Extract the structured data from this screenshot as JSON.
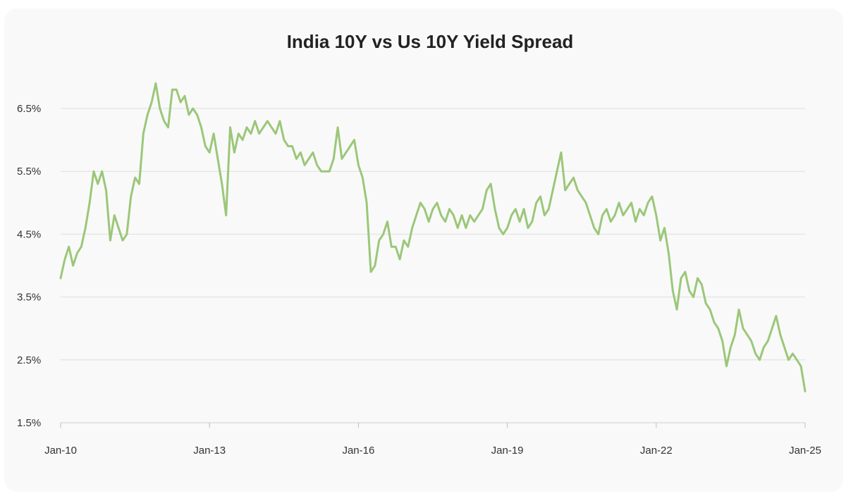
{
  "chart_data": {
    "type": "line",
    "title": "India 10Y vs Us 10Y Yield Spread",
    "xlabel": "",
    "ylabel": "",
    "x_ticks": [
      "Jan-10",
      "Jan-13",
      "Jan-16",
      "Jan-19",
      "Jan-22",
      "Jan-25"
    ],
    "x_range": [
      "2010-01",
      "2025-01"
    ],
    "y_ticks": [
      "6.5%",
      "5.5%",
      "4.5%",
      "3.5%",
      "2.5%",
      "1.5%"
    ],
    "ylim": [
      1.5,
      7.0
    ],
    "grid": "horizontal",
    "legend": "none",
    "line_color": "#9bc779",
    "series": [
      {
        "x": [
          "2010-01",
          "2010-02",
          "2010-03",
          "2010-04",
          "2010-05",
          "2010-06",
          "2010-07",
          "2010-08",
          "2010-09",
          "2010-10",
          "2010-11",
          "2010-12",
          "2011-01",
          "2011-02",
          "2011-03",
          "2011-04",
          "2011-05",
          "2011-06",
          "2011-07",
          "2011-08",
          "2011-09",
          "2011-10",
          "2011-11",
          "2011-12",
          "2012-01",
          "2012-02",
          "2012-03",
          "2012-04",
          "2012-05",
          "2012-06",
          "2012-07",
          "2012-08",
          "2012-09",
          "2012-10",
          "2012-11",
          "2012-12",
          "2013-01",
          "2013-02",
          "2013-03",
          "2013-04",
          "2013-05",
          "2013-06",
          "2013-07",
          "2013-08",
          "2013-09",
          "2013-10",
          "2013-11",
          "2013-12",
          "2014-01",
          "2014-02",
          "2014-03",
          "2014-04",
          "2014-05",
          "2014-06",
          "2014-07",
          "2014-08",
          "2014-09",
          "2014-10",
          "2014-11",
          "2014-12",
          "2015-01",
          "2015-02",
          "2015-03",
          "2015-04",
          "2015-05",
          "2015-06",
          "2015-07",
          "2015-08",
          "2015-09",
          "2015-10",
          "2015-11",
          "2015-12",
          "2016-01",
          "2016-02",
          "2016-03",
          "2016-04",
          "2016-05",
          "2016-06",
          "2016-07",
          "2016-08",
          "2016-09",
          "2016-10",
          "2016-11",
          "2016-12",
          "2017-01",
          "2017-02",
          "2017-03",
          "2017-04",
          "2017-05",
          "2017-06",
          "2017-07",
          "2017-08",
          "2017-09",
          "2017-10",
          "2017-11",
          "2017-12",
          "2018-01",
          "2018-02",
          "2018-03",
          "2018-04",
          "2018-05",
          "2018-06",
          "2018-07",
          "2018-08",
          "2018-09",
          "2018-10",
          "2018-11",
          "2018-12",
          "2019-01",
          "2019-02",
          "2019-03",
          "2019-04",
          "2019-05",
          "2019-06",
          "2019-07",
          "2019-08",
          "2019-09",
          "2019-10",
          "2019-11",
          "2019-12",
          "2020-01",
          "2020-02",
          "2020-03",
          "2020-04",
          "2020-05",
          "2020-06",
          "2020-07",
          "2020-08",
          "2020-09",
          "2020-10",
          "2020-11",
          "2020-12",
          "2021-01",
          "2021-02",
          "2021-03",
          "2021-04",
          "2021-05",
          "2021-06",
          "2021-07",
          "2021-08",
          "2021-09",
          "2021-10",
          "2021-11",
          "2021-12",
          "2022-01",
          "2022-02",
          "2022-03",
          "2022-04",
          "2022-05",
          "2022-06",
          "2022-07",
          "2022-08",
          "2022-09",
          "2022-10",
          "2022-11",
          "2022-12",
          "2023-01",
          "2023-02",
          "2023-03",
          "2023-04",
          "2023-05",
          "2023-06",
          "2023-07",
          "2023-08",
          "2023-09",
          "2023-10",
          "2023-11",
          "2023-12",
          "2024-01",
          "2024-02",
          "2024-03",
          "2024-04",
          "2024-05",
          "2024-06",
          "2024-07",
          "2024-08",
          "2024-09",
          "2024-10",
          "2024-11",
          "2024-12",
          "2025-01"
        ],
        "values": [
          3.8,
          4.1,
          4.3,
          4.0,
          4.2,
          4.3,
          4.6,
          5.0,
          5.5,
          5.3,
          5.5,
          5.2,
          4.4,
          4.8,
          4.6,
          4.4,
          4.5,
          5.1,
          5.4,
          5.3,
          6.1,
          6.4,
          6.6,
          6.9,
          6.5,
          6.3,
          6.2,
          6.8,
          6.8,
          6.6,
          6.7,
          6.4,
          6.5,
          6.4,
          6.2,
          5.9,
          5.8,
          6.1,
          5.7,
          5.3,
          4.8,
          6.2,
          5.8,
          6.1,
          6.0,
          6.2,
          6.1,
          6.3,
          6.1,
          6.2,
          6.3,
          6.2,
          6.1,
          6.3,
          6.0,
          5.9,
          5.9,
          5.7,
          5.8,
          5.6,
          5.7,
          5.8,
          5.6,
          5.5,
          5.5,
          5.5,
          5.7,
          6.2,
          5.7,
          5.8,
          5.9,
          6.0,
          5.6,
          5.4,
          5.0,
          3.9,
          4.0,
          4.4,
          4.5,
          4.7,
          4.3,
          4.3,
          4.1,
          4.4,
          4.3,
          4.6,
          4.8,
          5.0,
          4.9,
          4.7,
          4.9,
          5.0,
          4.8,
          4.7,
          4.9,
          4.8,
          4.6,
          4.8,
          4.6,
          4.8,
          4.7,
          4.8,
          4.9,
          5.2,
          5.3,
          4.9,
          4.6,
          4.5,
          4.6,
          4.8,
          4.9,
          4.7,
          4.9,
          4.6,
          4.7,
          5.0,
          5.1,
          4.8,
          4.9,
          5.2,
          5.5,
          5.8,
          5.2,
          5.3,
          5.4,
          5.2,
          5.1,
          5.0,
          4.8,
          4.6,
          4.5,
          4.8,
          4.9,
          4.7,
          4.8,
          5.0,
          4.8,
          4.9,
          5.0,
          4.7,
          4.9,
          4.8,
          5.0,
          5.1,
          4.8,
          4.4,
          4.6,
          4.2,
          3.6,
          3.3,
          3.8,
          3.9,
          3.6,
          3.5,
          3.8,
          3.7,
          3.4,
          3.3,
          3.1,
          3.0,
          2.8,
          2.4,
          2.7,
          2.9,
          3.3,
          3.0,
          2.9,
          2.8,
          2.6,
          2.5,
          2.7,
          2.8,
          3.0,
          3.2,
          2.9,
          2.7,
          2.5,
          2.6,
          2.5,
          2.4,
          2.0
        ]
      }
    ]
  }
}
